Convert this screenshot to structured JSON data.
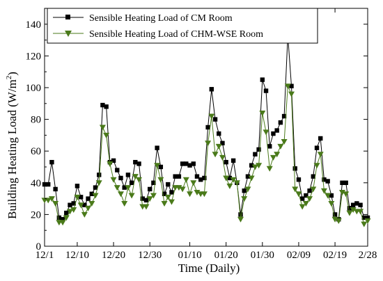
{
  "chart_data": {
    "type": "line",
    "xlabel": "Time (Daily)",
    "ylabel": "Building Heating Load (W/m",
    "ylabel_sup": "2",
    "ylabel_close": ")",
    "ylim": [
      0,
      150
    ],
    "yticks": [
      0,
      20,
      40,
      60,
      80,
      100,
      120,
      140
    ],
    "xlim": [
      0,
      89
    ],
    "x_tick_labels": [
      "12/1",
      "12/10",
      "12/20",
      "12/30",
      "01/10",
      "01/20",
      "01/30",
      "02/09",
      "02/19",
      "2/28"
    ],
    "x_tick_days": [
      0,
      9,
      19,
      29,
      40,
      50,
      60,
      70,
      80,
      89
    ],
    "x": [
      0,
      1,
      2,
      3,
      4,
      5,
      6,
      7,
      8,
      9,
      10,
      11,
      12,
      13,
      14,
      15,
      16,
      17,
      18,
      19,
      20,
      21,
      22,
      23,
      24,
      25,
      26,
      27,
      28,
      29,
      30,
      31,
      32,
      33,
      34,
      35,
      36,
      37,
      38,
      39,
      40,
      41,
      42,
      43,
      44,
      45,
      46,
      47,
      48,
      49,
      50,
      51,
      52,
      53,
      54,
      55,
      56,
      57,
      58,
      59,
      60,
      61,
      62,
      63,
      64,
      65,
      66,
      67,
      68,
      69,
      70,
      71,
      72,
      73,
      74,
      75,
      76,
      77,
      78,
      79,
      80,
      81,
      82,
      83,
      84,
      85,
      86,
      87,
      88,
      89
    ],
    "legend_position": "top-left",
    "grid": false,
    "series": [
      {
        "name": "Sensible Heating Load of CM Room",
        "color": "#000000",
        "marker": "square",
        "values": [
          39,
          39,
          53,
          36,
          18,
          17,
          21,
          26,
          27,
          38,
          31,
          26,
          30,
          33,
          37,
          45,
          89,
          88,
          53,
          54,
          48,
          43,
          37,
          45,
          40,
          53,
          52,
          30,
          29,
          36,
          40,
          62,
          50,
          33,
          39,
          34,
          44,
          44,
          52,
          52,
          51,
          52,
          44,
          42,
          43,
          75,
          99,
          80,
          71,
          65,
          53,
          43,
          54,
          40,
          20,
          35,
          44,
          51,
          58,
          61,
          105,
          98,
          63,
          71,
          73,
          78,
          82,
          133,
          101,
          49,
          42,
          30,
          32,
          35,
          44,
          62,
          68,
          42,
          41,
          32,
          20,
          17,
          40,
          40,
          24,
          26,
          27,
          26,
          18,
          18
        ]
      },
      {
        "name": "Sensible Heating Load of CHM-WSE Room",
        "color": "#4a7a1a",
        "marker": "triangle-down",
        "values": [
          29,
          29,
          30,
          27,
          15,
          15,
          18,
          22,
          23,
          31,
          26,
          20,
          24,
          27,
          32,
          40,
          75,
          70,
          52,
          42,
          37,
          33,
          27,
          37,
          32,
          44,
          42,
          25,
          25,
          30,
          32,
          51,
          42,
          27,
          31,
          28,
          37,
          37,
          36,
          42,
          33,
          40,
          34,
          33,
          33,
          65,
          82,
          58,
          63,
          56,
          43,
          38,
          42,
          40,
          17,
          30,
          36,
          43,
          50,
          51,
          84,
          72,
          49,
          56,
          58,
          63,
          66,
          101,
          96,
          36,
          33,
          25,
          27,
          30,
          36,
          51,
          58,
          35,
          32,
          27,
          17,
          16,
          34,
          33,
          21,
          23,
          22,
          22,
          14,
          16
        ]
      }
    ]
  }
}
